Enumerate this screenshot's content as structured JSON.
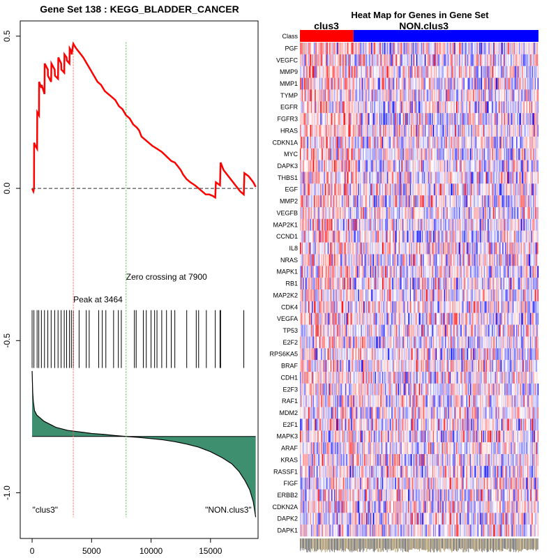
{
  "chart_data": [
    {
      "type": "line",
      "title": "Gene Set  138 : KEGG_BLADDER_CANCER",
      "xlabel": "",
      "ylabel": "",
      "xlim": [
        -1000,
        19000
      ],
      "ylim": [
        -1.15,
        0.55
      ],
      "x_ticks": [
        0,
        5000,
        10000,
        15000
      ],
      "x_tick_labels": [
        "0",
        "5000",
        "10000",
        "15000"
      ],
      "y_ticks": [
        0.5,
        0.0,
        -0.5,
        -1.0
      ],
      "y_tick_labels": [
        "0.5",
        "0.0",
        "-0.5",
        "-1.0"
      ],
      "series": [
        {
          "name": "running enrichment score",
          "color": "#ff0000",
          "x": [
            0,
            110,
            160,
            170,
            270,
            420,
            430,
            580,
            590,
            780,
            800,
            1040,
            1060,
            1320,
            1330,
            1600,
            1620,
            1900,
            1920,
            2180,
            2200,
            2440,
            2460,
            2700,
            2720,
            2900,
            2920,
            3140,
            3160,
            3300,
            3320,
            3440,
            3464,
            3700,
            4000,
            4300,
            4600,
            4900,
            5200,
            5500,
            5800,
            6100,
            6400,
            6700,
            7000,
            7300,
            7600,
            7900,
            8200,
            8500,
            8800,
            9000,
            9200,
            9500,
            9800,
            10100,
            10500,
            10900,
            11300,
            11700,
            12000,
            12300,
            12500,
            12700,
            13000,
            13300,
            13700,
            14000,
            14300,
            14600,
            14900,
            15200,
            15400,
            15450,
            15800,
            15850,
            16100,
            16500,
            17000,
            17500,
            17800,
            17850,
            18200,
            18600,
            18800
          ],
          "y": [
            0.0,
            -0.01,
            0.0,
            0.15,
            0.14,
            0.13,
            0.25,
            0.24,
            0.35,
            0.33,
            0.34,
            0.31,
            0.41,
            0.39,
            0.37,
            0.35,
            0.41,
            0.39,
            0.37,
            0.36,
            0.43,
            0.41,
            0.39,
            0.38,
            0.44,
            0.43,
            0.42,
            0.41,
            0.46,
            0.45,
            0.44,
            0.47,
            0.475,
            0.46,
            0.445,
            0.43,
            0.41,
            0.39,
            0.37,
            0.35,
            0.34,
            0.32,
            0.31,
            0.3,
            0.29,
            0.27,
            0.26,
            0.24,
            0.23,
            0.21,
            0.2,
            0.19,
            0.17,
            0.16,
            0.15,
            0.14,
            0.13,
            0.12,
            0.105,
            0.09,
            0.085,
            0.07,
            0.06,
            0.045,
            0.03,
            0.02,
            0.01,
            0.0,
            -0.01,
            -0.02,
            -0.02,
            -0.025,
            -0.03,
            0.02,
            0.01,
            0.085,
            0.06,
            0.04,
            0.015,
            -0.01,
            -0.02,
            0.05,
            0.04,
            0.02,
            0.005
          ]
        },
        {
          "name": "zero line",
          "color": "#555555",
          "style": "dashed",
          "x": [
            0,
            18800
          ],
          "y": [
            0,
            0
          ]
        }
      ],
      "vlines": [
        {
          "x": 3464,
          "color": "#ff6060",
          "style": "dotted"
        },
        {
          "x": 7900,
          "color": "#40c040",
          "style": "dotted"
        }
      ],
      "hit_positions": [
        0,
        150,
        420,
        560,
        780,
        1040,
        1320,
        1600,
        1900,
        2180,
        2440,
        2700,
        2900,
        3140,
        3300,
        3464,
        3950,
        4550,
        4800,
        5600,
        5900,
        6200,
        6850,
        7250,
        7500,
        8600,
        8750,
        9350,
        9600,
        10000,
        10300,
        10500,
        10900,
        11300,
        11700,
        12000,
        13000,
        13800,
        14000,
        14650,
        15400,
        15800,
        15850,
        17800
      ],
      "ranked_metric": {
        "color": "#3d8f70",
        "x": [
          0,
          50,
          100,
          200,
          400,
          700,
          1000,
          1500,
          2000,
          3000,
          4000,
          5000,
          6000,
          7000,
          7900,
          9000,
          10000,
          11000,
          12000,
          13000,
          14000,
          15000,
          16000,
          16800,
          17400,
          17900,
          18300,
          18600,
          18800
        ],
        "y": [
          -0.6,
          -0.67,
          -0.7,
          -0.73,
          -0.745,
          -0.755,
          -0.765,
          -0.775,
          -0.785,
          -0.795,
          -0.8,
          -0.805,
          -0.808,
          -0.812,
          -0.815,
          -0.818,
          -0.822,
          -0.826,
          -0.832,
          -0.84,
          -0.85,
          -0.865,
          -0.885,
          -0.905,
          -0.93,
          -0.96,
          -0.99,
          -1.03,
          -1.08
        ],
        "baseline": -0.815
      },
      "annotations": [
        {
          "text": "Peak at 3464",
          "x": 3464,
          "y": -0.375
        },
        {
          "text": "Zero crossing at 7900",
          "x": 7900,
          "y": -0.3
        },
        {
          "text": "\"clus3\"",
          "x": 1100,
          "y": -1.065
        },
        {
          "text": "\"NON.clus3\"",
          "x": 16500,
          "y": -1.065
        }
      ]
    },
    {
      "type": "heatmap",
      "title": "Heat Map for Genes in Gene Set",
      "class_row_label": "Class",
      "groups": [
        {
          "name": "clus3",
          "color": "#ff0000",
          "columns": 58
        },
        {
          "name": "NON.clus3",
          "color": "#0000ff",
          "columns": 200
        }
      ],
      "colormap": [
        "#0000ff",
        "#ffffff",
        "#ff0000"
      ],
      "value_range": [
        -2.5,
        2.5
      ],
      "rows": [
        "PGF",
        "VEGFC",
        "MMP9",
        "MMP1",
        "TYMP",
        "EGFR",
        "FGFR3",
        "HRAS",
        "CDKN1A",
        "MYC",
        "DAPK3",
        "THBS1",
        "EGF",
        "MMP2",
        "VEGFB",
        "MAP2K1",
        "CCND1",
        "IL8",
        "NRAS",
        "MAPK1",
        "RB1",
        "MAP2K2",
        "CDK4",
        "VEGFA",
        "TP53",
        "E2F2",
        "RPS6KA5",
        "BRAF",
        "CDH1",
        "E2F3",
        "RAF1",
        "MDM2",
        "E2F1",
        "MAPK3",
        "ARAF",
        "KRAS",
        "RASSF1",
        "FIGF",
        "ERBB2",
        "CDKN2A",
        "DAPK2",
        "DAPK1"
      ]
    }
  ]
}
